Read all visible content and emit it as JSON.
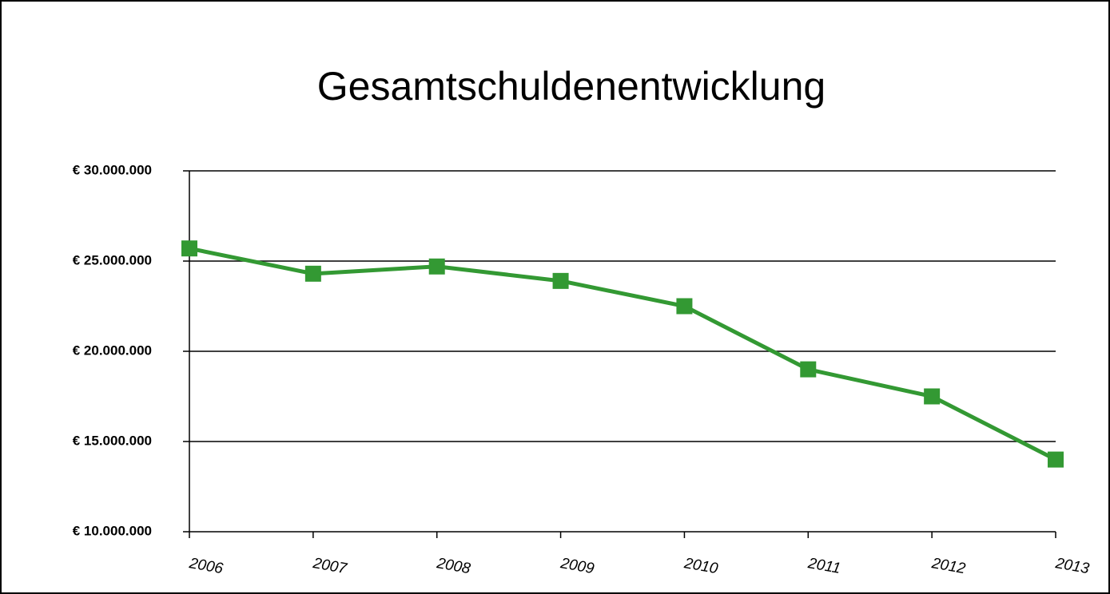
{
  "chart_data": {
    "type": "line",
    "title": "Gesamtschuldenentwicklung",
    "categories": [
      "2006",
      "2007",
      "2008",
      "2009",
      "2010",
      "2011",
      "2012",
      "2013"
    ],
    "series": [
      {
        "name": "Gesamtschulden",
        "color": "#339933",
        "values": [
          25700000,
          24300000,
          24700000,
          23900000,
          22500000,
          19000000,
          17500000,
          14000000
        ]
      }
    ],
    "ylim": [
      10000000,
      30000000
    ],
    "yticks": [
      {
        "value": 10000000,
        "label": "€ 10.000.000"
      },
      {
        "value": 15000000,
        "label": "€ 15.000.000"
      },
      {
        "value": 20000000,
        "label": "€ 20.000.000"
      },
      {
        "value": 25000000,
        "label": "€ 25.000.000"
      },
      {
        "value": 30000000,
        "label": "€ 30.000.000"
      }
    ],
    "grid": true
  }
}
